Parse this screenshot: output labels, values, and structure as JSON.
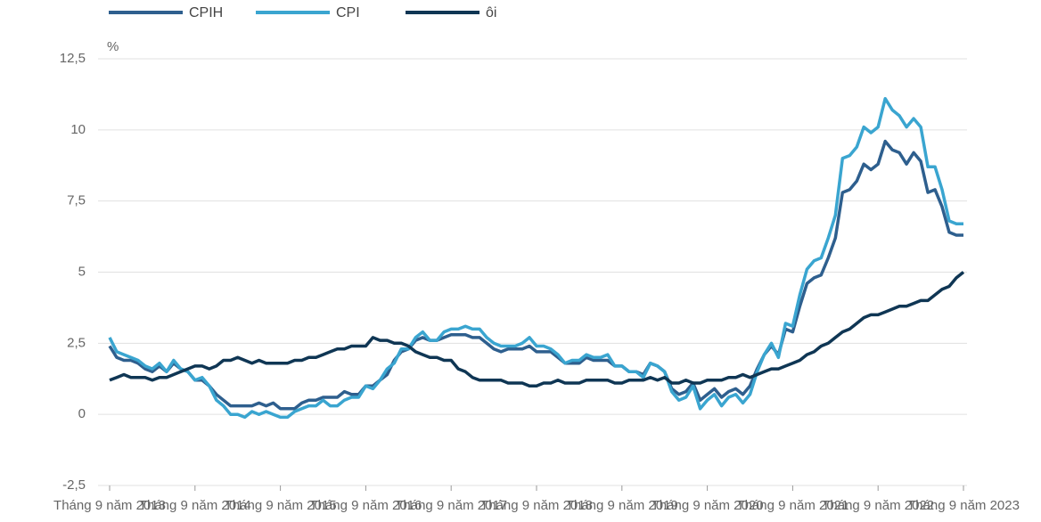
{
  "chart_data": {
    "type": "line",
    "y_unit": "%",
    "categories": [
      "Tháng 9 năm 2013",
      null,
      null,
      null,
      null,
      null,
      null,
      null,
      null,
      null,
      null,
      null,
      "Tháng 9 năm 2014",
      null,
      null,
      null,
      null,
      null,
      null,
      null,
      null,
      null,
      null,
      null,
      "Tháng 9 năm 2015",
      null,
      null,
      null,
      null,
      null,
      null,
      null,
      null,
      null,
      null,
      null,
      "Tháng 9 năm 2016",
      null,
      null,
      null,
      null,
      null,
      null,
      null,
      null,
      null,
      null,
      null,
      "Tháng 9 năm 2017",
      null,
      null,
      null,
      null,
      null,
      null,
      null,
      null,
      null,
      null,
      null,
      "Tháng 9 năm 2018",
      null,
      null,
      null,
      null,
      null,
      null,
      null,
      null,
      null,
      null,
      null,
      "Tháng 9 năm 2019",
      null,
      null,
      null,
      null,
      null,
      null,
      null,
      null,
      null,
      null,
      null,
      "Tháng 9 năm 2020",
      null,
      null,
      null,
      null,
      null,
      null,
      null,
      null,
      null,
      null,
      null,
      "Tháng 9 năm 2021",
      null,
      null,
      null,
      null,
      null,
      null,
      null,
      null,
      null,
      null,
      null,
      "Tháng 9 năm 2022",
      null,
      null,
      null,
      null,
      null,
      null,
      null,
      null,
      null,
      null,
      null,
      "Tháng 9 năm 2023"
    ],
    "series": [
      {
        "name": "CPIH",
        "color": "#2e5f8e",
        "values": [
          2.4,
          2.0,
          1.9,
          1.9,
          1.8,
          1.6,
          1.5,
          1.7,
          1.5,
          1.8,
          1.6,
          1.5,
          1.2,
          1.2,
          1.0,
          0.7,
          0.5,
          0.3,
          0.3,
          0.3,
          0.3,
          0.4,
          0.3,
          0.4,
          0.2,
          0.2,
          0.2,
          0.4,
          0.5,
          0.5,
          0.6,
          0.6,
          0.6,
          0.8,
          0.7,
          0.7,
          1.0,
          1.0,
          1.2,
          1.4,
          1.9,
          2.2,
          2.3,
          2.6,
          2.7,
          2.6,
          2.6,
          2.7,
          2.8,
          2.8,
          2.8,
          2.7,
          2.7,
          2.5,
          2.3,
          2.2,
          2.3,
          2.3,
          2.3,
          2.4,
          2.2,
          2.2,
          2.2,
          2.0,
          1.8,
          1.8,
          1.8,
          2.0,
          1.9,
          1.9,
          1.9,
          1.7,
          1.7,
          1.5,
          1.5,
          1.4,
          1.8,
          1.7,
          1.5,
          0.9,
          0.7,
          0.8,
          1.1,
          0.5,
          0.7,
          0.9,
          0.6,
          0.8,
          0.9,
          0.7,
          1.0,
          1.6,
          2.1,
          2.4,
          2.1,
          3.0,
          2.9,
          3.8,
          4.6,
          4.8,
          4.9,
          5.5,
          6.2,
          7.8,
          7.9,
          8.2,
          8.8,
          8.6,
          8.8,
          9.6,
          9.3,
          9.2,
          8.8,
          9.2,
          8.9,
          7.8,
          7.9,
          7.3,
          6.4,
          6.3,
          6.3
        ]
      },
      {
        "name": "CPI",
        "color": "#3aa5d0",
        "values": [
          2.7,
          2.2,
          2.1,
          2.0,
          1.9,
          1.7,
          1.6,
          1.8,
          1.5,
          1.9,
          1.6,
          1.5,
          1.2,
          1.3,
          1.0,
          0.5,
          0.3,
          0.0,
          0.0,
          -0.1,
          0.1,
          0.0,
          0.1,
          0.0,
          -0.1,
          -0.1,
          0.1,
          0.2,
          0.3,
          0.3,
          0.5,
          0.3,
          0.3,
          0.5,
          0.6,
          0.6,
          1.0,
          0.9,
          1.2,
          1.6,
          1.8,
          2.3,
          2.3,
          2.7,
          2.9,
          2.6,
          2.6,
          2.9,
          3.0,
          3.0,
          3.1,
          3.0,
          3.0,
          2.7,
          2.5,
          2.4,
          2.4,
          2.4,
          2.5,
          2.7,
          2.4,
          2.4,
          2.3,
          2.1,
          1.8,
          1.9,
          1.9,
          2.1,
          2.0,
          2.0,
          2.1,
          1.7,
          1.7,
          1.5,
          1.5,
          1.3,
          1.8,
          1.7,
          1.5,
          0.8,
          0.5,
          0.6,
          1.0,
          0.2,
          0.5,
          0.7,
          0.3,
          0.6,
          0.7,
          0.4,
          0.7,
          1.5,
          2.1,
          2.5,
          2.0,
          3.2,
          3.1,
          4.2,
          5.1,
          5.4,
          5.5,
          6.2,
          7.0,
          9.0,
          9.1,
          9.4,
          10.1,
          9.9,
          10.1,
          11.1,
          10.7,
          10.5,
          10.1,
          10.4,
          10.1,
          8.7,
          8.7,
          7.9,
          6.8,
          6.7,
          6.7
        ]
      },
      {
        "name": "ôi",
        "color": "#0f3654",
        "values": [
          1.2,
          1.3,
          1.4,
          1.3,
          1.3,
          1.3,
          1.2,
          1.3,
          1.3,
          1.4,
          1.5,
          1.6,
          1.7,
          1.7,
          1.6,
          1.7,
          1.9,
          1.9,
          2.0,
          1.9,
          1.8,
          1.9,
          1.8,
          1.8,
          1.8,
          1.8,
          1.9,
          1.9,
          2.0,
          2.0,
          2.1,
          2.2,
          2.3,
          2.3,
          2.4,
          2.4,
          2.4,
          2.7,
          2.6,
          2.6,
          2.5,
          2.5,
          2.4,
          2.2,
          2.1,
          2.0,
          2.0,
          1.9,
          1.9,
          1.6,
          1.5,
          1.3,
          1.2,
          1.2,
          1.2,
          1.2,
          1.1,
          1.1,
          1.1,
          1.0,
          1.0,
          1.1,
          1.1,
          1.2,
          1.1,
          1.1,
          1.1,
          1.2,
          1.2,
          1.2,
          1.2,
          1.1,
          1.1,
          1.2,
          1.2,
          1.2,
          1.3,
          1.2,
          1.3,
          1.1,
          1.1,
          1.2,
          1.1,
          1.1,
          1.2,
          1.2,
          1.2,
          1.3,
          1.3,
          1.4,
          1.3,
          1.4,
          1.5,
          1.6,
          1.6,
          1.7,
          1.8,
          1.9,
          2.1,
          2.2,
          2.4,
          2.5,
          2.7,
          2.9,
          3.0,
          3.2,
          3.4,
          3.5,
          3.5,
          3.6,
          3.7,
          3.8,
          3.8,
          3.9,
          4.0,
          4.0,
          4.2,
          4.4,
          4.5,
          4.8,
          5.0
        ]
      }
    ],
    "ylim": [
      -2.5,
      12.5
    ],
    "yticks": [
      {
        "value": -2.5,
        "label": "-2,5"
      },
      0,
      {
        "value": 2.5,
        "label": "2,5"
      },
      5,
      {
        "value": 7.5,
        "label": "7,5"
      },
      10,
      {
        "value": 12.5,
        "label": "12,5"
      }
    ],
    "grid": true,
    "legend": "top-left"
  }
}
